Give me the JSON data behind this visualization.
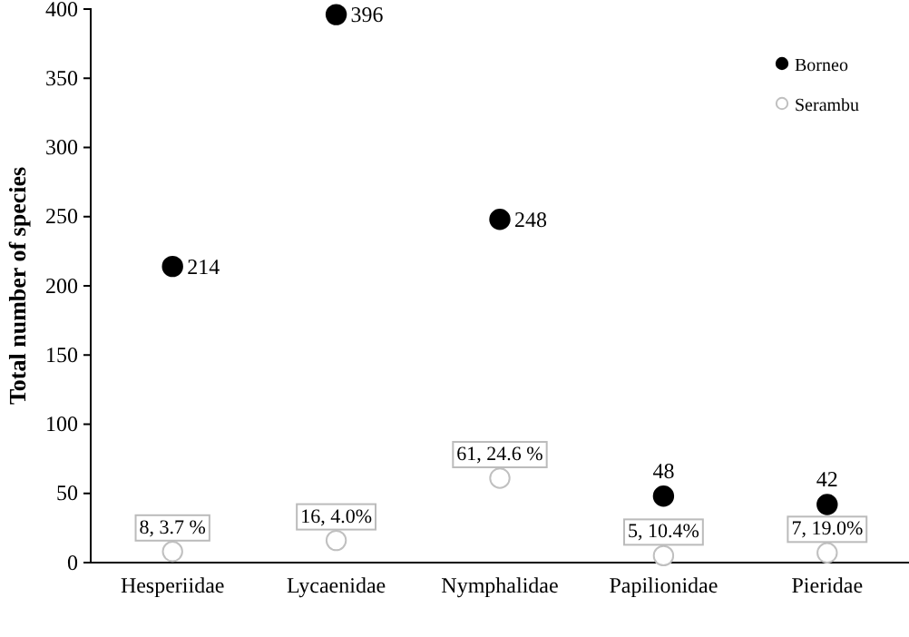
{
  "chart_data": {
    "type": "scatter",
    "ylabel": "Total number of species",
    "categories": [
      "Hesperiidae",
      "Lycaenidae",
      "Nymphalidae",
      "Papilionidae",
      "Pieridae"
    ],
    "series": [
      {
        "name": "Borneo",
        "color": "#000000",
        "values": [
          214,
          396,
          248,
          48,
          42
        ],
        "value_labels": [
          "214",
          "396",
          "248",
          "48",
          "42"
        ]
      },
      {
        "name": "Serambu",
        "color": "#ffffff",
        "values": [
          8,
          16,
          61,
          5,
          7
        ],
        "value_labels": [
          "8, 3.7 %",
          "16, 4.0%",
          "61, 24.6 %",
          "5, 10.4%",
          "7, 19.0%"
        ]
      }
    ],
    "ylim": [
      0,
      400
    ],
    "yticks": [
      0,
      50,
      100,
      150,
      200,
      250,
      300,
      350,
      400
    ],
    "grid": false,
    "legend": "top right",
    "marker": "circle"
  }
}
